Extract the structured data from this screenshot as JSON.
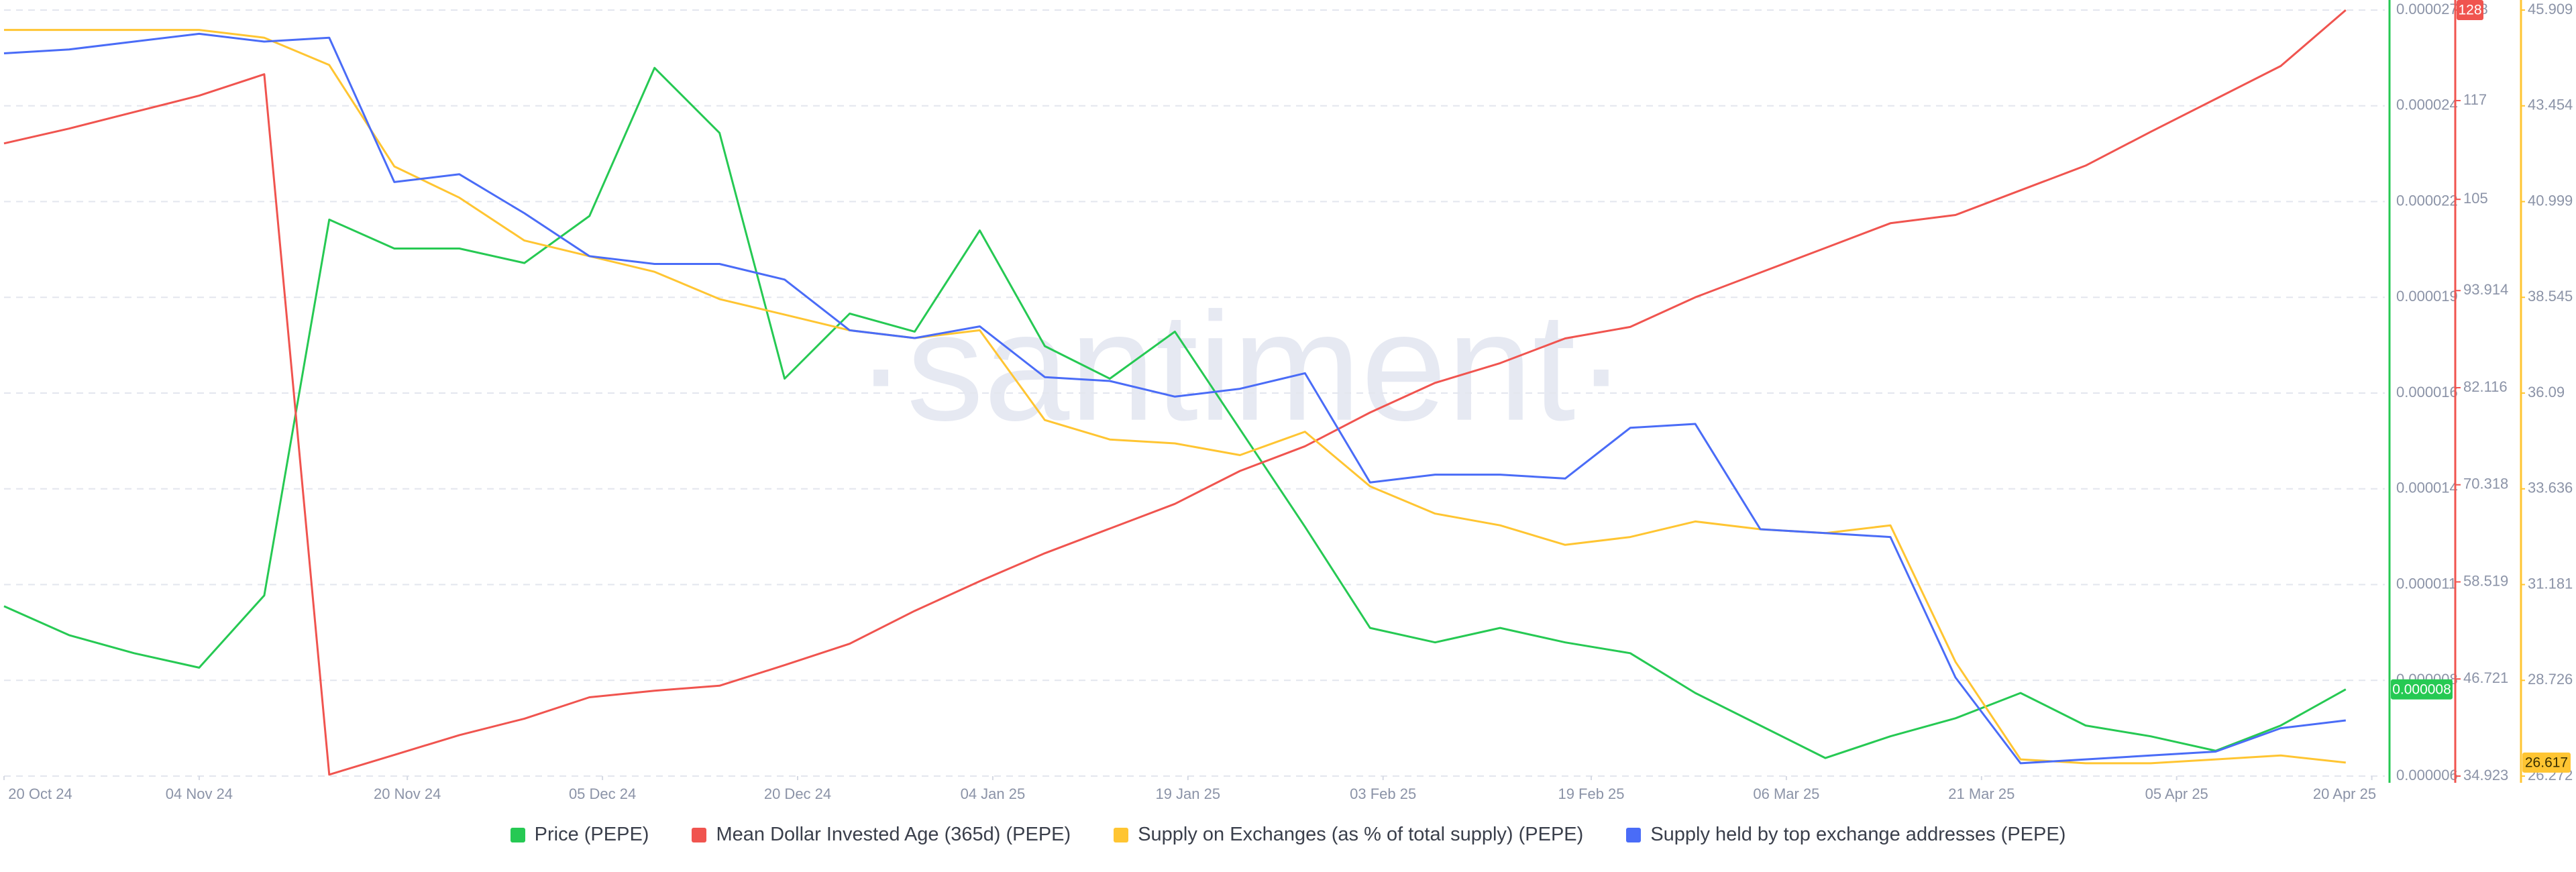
{
  "chart_data": {
    "type": "line",
    "watermark": "·santiment·",
    "x": [
      "2024-10-20",
      "2024-10-25",
      "2024-10-30",
      "2024-11-04",
      "2024-11-09",
      "2024-11-14",
      "2024-11-19",
      "2024-11-24",
      "2024-11-29",
      "2024-12-04",
      "2024-12-09",
      "2024-12-14",
      "2024-12-19",
      "2024-12-24",
      "2024-12-29",
      "2025-01-03",
      "2025-01-08",
      "2025-01-13",
      "2025-01-18",
      "2025-01-23",
      "2025-01-28",
      "2025-02-02",
      "2025-02-07",
      "2025-02-12",
      "2025-02-17",
      "2025-02-22",
      "2025-02-27",
      "2025-03-04",
      "2025-03-09",
      "2025-03-14",
      "2025-03-19",
      "2025-03-24",
      "2025-03-29",
      "2025-04-03",
      "2025-04-08",
      "2025-04-13",
      "2025-04-18"
    ],
    "xlim": [
      "2024-10-20",
      "2025-04-21"
    ],
    "xticks": [
      {
        "value": "2024-10-20",
        "label": "20 Oct 24"
      },
      {
        "value": "2024-11-04",
        "label": "04 Nov 24"
      },
      {
        "value": "2024-11-20",
        "label": "20 Nov 24"
      },
      {
        "value": "2024-12-05",
        "label": "05 Dec 24"
      },
      {
        "value": "2024-12-20",
        "label": "20 Dec 24"
      },
      {
        "value": "2025-01-04",
        "label": "04 Jan 25"
      },
      {
        "value": "2025-01-19",
        "label": "19 Jan 25"
      },
      {
        "value": "2025-02-03",
        "label": "03 Feb 25"
      },
      {
        "value": "2025-02-19",
        "label": "19 Feb 25"
      },
      {
        "value": "2025-03-06",
        "label": "06 Mar 25"
      },
      {
        "value": "2025-03-21",
        "label": "21 Mar 25"
      },
      {
        "value": "2025-04-05",
        "label": "05 Apr 25"
      },
      {
        "value": "2025-04-20",
        "label": "20 Apr 25"
      }
    ],
    "ylim": [
      5.6e-06,
      2.68e-05
    ],
    "yticks": [
      {
        "value": 5.6e-06,
        "label": "0.000006"
      },
      {
        "value": 8.25e-06,
        "label": "0.000008"
      },
      {
        "value": 1.09e-05,
        "label": "0.000011"
      },
      {
        "value": 1.355e-05,
        "label": "0.000014"
      },
      {
        "value": 1.62e-05,
        "label": "0.000016"
      },
      {
        "value": 1.885e-05,
        "label": "0.000019"
      },
      {
        "value": 2.15e-05,
        "label": "0.000022"
      },
      {
        "value": 2.415e-05,
        "label": "0.000024"
      },
      {
        "value": 2.68e-05,
        "label": "0.000027"
      }
    ],
    "y2lim": [
      34.923,
      128
    ],
    "y2ticks": [
      34.923,
      46.721,
      58.519,
      70.318,
      82.116,
      93.914,
      105,
      117,
      128
    ],
    "y3lim": [
      26.272,
      45.909
    ],
    "y3ticks": [
      26.272,
      28.726,
      31.181,
      33.636,
      36.09,
      38.545,
      40.999,
      43.454,
      45.909
    ],
    "grid": true,
    "series": [
      {
        "name": "Price (PEPE)",
        "color": "#26c953",
        "axis": "y",
        "values": [
          1.03e-05,
          9.5e-06,
          9e-06,
          8.6e-06,
          1.06e-05,
          2.1e-05,
          2.02e-05,
          2.02e-05,
          1.98e-05,
          2.11e-05,
          2.52e-05,
          2.34e-05,
          1.66e-05,
          1.84e-05,
          1.79e-05,
          2.07e-05,
          1.75e-05,
          1.66e-05,
          1.79e-05,
          1.52e-05,
          1.25e-05,
          9.7e-06,
          9.3e-06,
          9.7e-06,
          9.3e-06,
          9e-06,
          7.9e-06,
          7e-06,
          6.1e-06,
          6.7e-06,
          7.2e-06,
          7.9e-06,
          7e-06,
          6.7e-06,
          6.3e-06,
          7e-06,
          8e-06
        ]
      },
      {
        "name": "Mean Dollar Invested Age (365d) (PEPE)",
        "color": "#f0544f",
        "axis": "y2",
        "values": [
          111.8,
          113.6,
          115.6,
          117.6,
          120.2,
          35.1,
          37.5,
          39.9,
          41.9,
          44.5,
          45.3,
          45.9,
          48.4,
          51,
          55,
          58.6,
          62,
          65,
          68,
          72,
          75,
          79.1,
          82.7,
          85.1,
          88.1,
          89.5,
          93.1,
          96.1,
          99.1,
          102.1,
          103.1,
          106.1,
          109.1,
          113.2,
          117.2,
          121.2,
          128
        ]
      },
      {
        "name": "Supply on Exchanges (as % of total supply) (PEPE)",
        "color": "#ffc532",
        "axis": "y3",
        "values": [
          45.4,
          45.4,
          45.4,
          45.4,
          45.2,
          44.5,
          41.9,
          41.1,
          40,
          39.6,
          39.2,
          38.5,
          38.1,
          37.7,
          37.5,
          37.7,
          35.4,
          34.9,
          34.8,
          34.5,
          35.1,
          33.7,
          33,
          32.7,
          32.2,
          32.4,
          32.8,
          32.6,
          32.5,
          32.7,
          29.2,
          26.7,
          26.6,
          26.6,
          26.7,
          26.8,
          26.617
        ]
      },
      {
        "name": "Supply held by top exchange addresses (PEPE)",
        "color": "#4a6cf7",
        "axis": "y3",
        "values": [
          44.8,
          44.9,
          45.1,
          45.3,
          45.1,
          45.2,
          41.5,
          41.7,
          40.7,
          39.6,
          39.4,
          39.4,
          39,
          37.7,
          37.5,
          37.8,
          36.5,
          36.4,
          36,
          36.2,
          36.6,
          33.8,
          34,
          34,
          33.9,
          35.2,
          35.3,
          32.6,
          32.5,
          32.4,
          28.8,
          26.6,
          26.7,
          26.8,
          26.9,
          27.5,
          27.7
        ]
      }
    ]
  }
}
